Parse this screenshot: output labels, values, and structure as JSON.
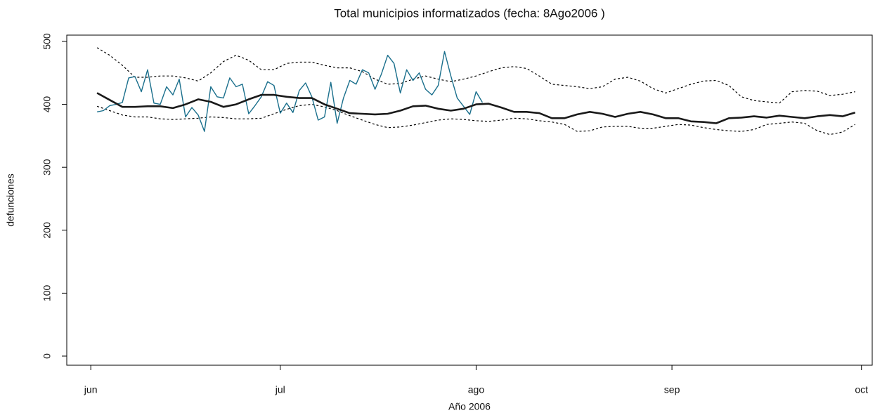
{
  "chart_data": {
    "type": "line",
    "title": "Total municipios informatizados (fecha: 8Ago2006 )",
    "xlabel": "Año 2006",
    "ylabel": "defunciones",
    "xlim": [
      -3.8,
      123.7
    ],
    "xticks": [
      {
        "value": 0,
        "label": "jun"
      },
      {
        "value": 30,
        "label": "jul"
      },
      {
        "value": 61,
        "label": "ago"
      },
      {
        "value": 92,
        "label": "sep"
      },
      {
        "value": 122,
        "label": "oct"
      }
    ],
    "ylim": [
      -14.5,
      510
    ],
    "yticks": [
      0,
      100,
      200,
      300,
      400,
      500
    ],
    "series": [
      {
        "color": "#000000",
        "dash": true,
        "linewidth": 1.2,
        "x": [
          1,
          3,
          5,
          7,
          9,
          11,
          13,
          15,
          17,
          19,
          21,
          23,
          25,
          27,
          29,
          31,
          33,
          35,
          37,
          39,
          41,
          43,
          45,
          47,
          49,
          51,
          53,
          55,
          57,
          59,
          61,
          63,
          65,
          67,
          69,
          71,
          73,
          75,
          77,
          79,
          81,
          83,
          85,
          87,
          89,
          91,
          93,
          95,
          97,
          99,
          101,
          103,
          105,
          107,
          109,
          111,
          113,
          115,
          117,
          119,
          121
        ],
        "values": [
          490,
          478,
          462,
          443,
          443,
          445,
          445,
          442,
          437,
          450,
          468,
          478,
          470,
          455,
          455,
          465,
          467,
          467,
          462,
          458,
          458,
          452,
          440,
          432,
          433,
          440,
          445,
          440,
          436,
          440,
          445,
          452,
          458,
          460,
          457,
          445,
          432,
          430,
          428,
          425,
          428,
          440,
          443,
          437,
          425,
          418,
          425,
          432,
          437,
          438,
          430,
          412,
          406,
          404,
          402,
          420,
          422,
          421,
          414,
          416,
          420
        ]
      },
      {
        "color": "#000000",
        "dash": true,
        "linewidth": 1.2,
        "x": [
          1,
          3,
          5,
          7,
          9,
          11,
          13,
          15,
          17,
          19,
          21,
          23,
          25,
          27,
          29,
          31,
          33,
          35,
          37,
          39,
          41,
          43,
          45,
          47,
          49,
          51,
          53,
          55,
          57,
          59,
          61,
          63,
          65,
          67,
          69,
          71,
          73,
          75,
          77,
          79,
          81,
          83,
          85,
          87,
          89,
          91,
          93,
          95,
          97,
          99,
          101,
          103,
          105,
          107,
          109,
          111,
          113,
          115,
          117,
          119,
          121
        ],
        "values": [
          397,
          390,
          383,
          380,
          380,
          377,
          376,
          377,
          378,
          380,
          379,
          377,
          377,
          378,
          385,
          392,
          398,
          400,
          396,
          390,
          382,
          375,
          368,
          363,
          364,
          367,
          371,
          375,
          377,
          376,
          374,
          373,
          375,
          378,
          377,
          374,
          372,
          368,
          357,
          358,
          364,
          365,
          365,
          362,
          362,
          365,
          368,
          367,
          363,
          360,
          358,
          357,
          360,
          368,
          370,
          372,
          370,
          358,
          352,
          356,
          368
        ]
      },
      {
        "color": "#1a6f8c",
        "dash": false,
        "linewidth": 1.4,
        "x": [
          1,
          2,
          3,
          4,
          5,
          6,
          7,
          8,
          9,
          10,
          11,
          12,
          13,
          14,
          15,
          16,
          17,
          18,
          19,
          20,
          21,
          22,
          23,
          24,
          25,
          26,
          27,
          28,
          29,
          30,
          31,
          32,
          33,
          34,
          35,
          36,
          37,
          38,
          39,
          40,
          41,
          42,
          43,
          44,
          45,
          46,
          47,
          48,
          49,
          50,
          51,
          52,
          53,
          54,
          55,
          56,
          57,
          58,
          59,
          60,
          61,
          62
        ],
        "values": [
          388,
          390,
          398,
          400,
          403,
          442,
          444,
          420,
          455,
          402,
          400,
          428,
          415,
          440,
          380,
          395,
          383,
          357,
          428,
          412,
          410,
          442,
          428,
          432,
          385,
          398,
          412,
          436,
          430,
          386,
          402,
          387,
          422,
          434,
          412,
          375,
          380,
          435,
          370,
          410,
          438,
          432,
          455,
          450,
          424,
          448,
          478,
          465,
          418,
          455,
          438,
          450,
          424,
          415,
          430,
          484,
          445,
          410,
          397,
          384,
          420,
          403
        ]
      },
      {
        "color": "#1a1a1a",
        "dash": false,
        "linewidth": 2.6,
        "x": [
          1,
          3,
          5,
          7,
          9,
          11,
          13,
          15,
          17,
          19,
          21,
          23,
          25,
          27,
          29,
          31,
          33,
          35,
          37,
          39,
          41,
          43,
          45,
          47,
          49,
          51,
          53,
          55,
          57,
          59,
          61,
          63,
          65,
          67,
          69,
          71,
          73,
          75,
          77,
          79,
          81,
          83,
          85,
          87,
          89,
          91,
          93,
          95,
          97,
          99,
          101,
          103,
          105,
          107,
          109,
          111,
          113,
          115,
          117,
          119,
          121
        ],
        "values": [
          418,
          407,
          396,
          396,
          397,
          397,
          394,
          400,
          408,
          404,
          396,
          400,
          408,
          415,
          415,
          412,
          410,
          410,
          400,
          393,
          386,
          385,
          384,
          385,
          390,
          397,
          398,
          393,
          390,
          393,
          400,
          401,
          395,
          388,
          388,
          386,
          378,
          378,
          384,
          388,
          385,
          380,
          385,
          388,
          384,
          378,
          378,
          373,
          372,
          370,
          378,
          379,
          381,
          379,
          382,
          380,
          378,
          381,
          383,
          381,
          387
        ]
      }
    ]
  }
}
